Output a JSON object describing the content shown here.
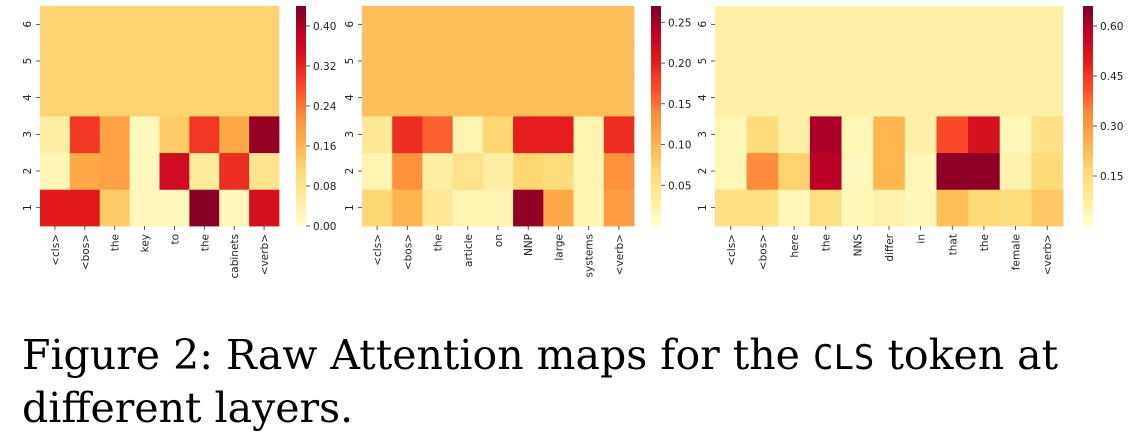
{
  "caption": {
    "prefix": "Figure 2: Raw Attention maps for the",
    "code": "CLS",
    "suffix": "token at different layers."
  },
  "chart_data": [
    {
      "type": "heatmap",
      "x_labels": [
        "<cls>",
        "<bos>",
        "the",
        "key",
        "to",
        "the",
        "cabinets",
        "<verb>"
      ],
      "y_labels": [
        "1",
        "2",
        "3",
        "4",
        "5",
        "6"
      ],
      "values": [
        [
          0.33,
          0.33,
          0.13,
          0.02,
          0.02,
          0.43,
          0.02,
          0.35
        ],
        [
          0.03,
          0.18,
          0.19,
          0.02,
          0.36,
          0.06,
          0.31,
          0.08
        ],
        [
          0.05,
          0.3,
          0.19,
          0.02,
          0.13,
          0.3,
          0.18,
          0.42
        ],
        [
          0.12,
          0.12,
          0.12,
          0.12,
          0.12,
          0.12,
          0.12,
          0.12
        ],
        [
          0.12,
          0.12,
          0.12,
          0.12,
          0.12,
          0.12,
          0.12,
          0.12
        ],
        [
          0.12,
          0.12,
          0.12,
          0.12,
          0.12,
          0.12,
          0.12,
          0.12
        ]
      ],
      "colorbar": {
        "range": [
          0,
          0.44
        ],
        "ticks": [
          "0.00",
          "0.08",
          "0.16",
          "0.24",
          "0.32",
          "0.40"
        ],
        "tick_values": [
          0,
          0.08,
          0.16,
          0.24,
          0.32,
          0.4
        ]
      },
      "colormap": "YlOrRd"
    },
    {
      "type": "heatmap",
      "x_labels": [
        "<cls>",
        "<bos>",
        "the",
        "article",
        "on",
        "NNP",
        "large",
        "systems",
        "<verb>"
      ],
      "y_labels": [
        "1",
        "2",
        "3",
        "4",
        "5",
        "6"
      ],
      "values": [
        [
          0.07,
          0.1,
          0.04,
          0.02,
          0.02,
          0.26,
          0.11,
          0.02,
          0.12
        ],
        [
          0.02,
          0.13,
          0.03,
          0.05,
          0.03,
          0.07,
          0.06,
          0.02,
          0.13
        ],
        [
          0.04,
          0.19,
          0.16,
          0.02,
          0.07,
          0.2,
          0.2,
          0.02,
          0.19
        ],
        [
          0.09,
          0.09,
          0.09,
          0.09,
          0.09,
          0.09,
          0.09,
          0.09,
          0.09
        ],
        [
          0.09,
          0.09,
          0.09,
          0.09,
          0.09,
          0.09,
          0.09,
          0.09,
          0.09
        ],
        [
          0.09,
          0.09,
          0.09,
          0.09,
          0.09,
          0.09,
          0.09,
          0.09,
          0.09
        ]
      ],
      "colorbar": {
        "range": [
          0,
          0.27
        ],
        "ticks": [
          "0.05",
          "0.10",
          "0.15",
          "0.20",
          "0.25"
        ],
        "tick_values": [
          0.05,
          0.1,
          0.15,
          0.2,
          0.25
        ]
      },
      "colormap": "YlOrRd"
    },
    {
      "type": "heatmap",
      "x_labels": [
        "<cls>",
        "<bos>",
        "here",
        "the",
        "NNS",
        "differ",
        "in",
        "that",
        "the",
        "female",
        "<verb>"
      ],
      "y_labels": [
        "1",
        "2",
        "3",
        "4",
        "5",
        "6"
      ],
      "values": [
        [
          0.14,
          0.14,
          0.04,
          0.14,
          0.04,
          0.06,
          0.04,
          0.22,
          0.16,
          0.15,
          0.2
        ],
        [
          0.04,
          0.33,
          0.18,
          0.58,
          0.03,
          0.24,
          0.04,
          0.64,
          0.64,
          0.06,
          0.16
        ],
        [
          0.04,
          0.15,
          0.07,
          0.6,
          0.04,
          0.24,
          0.07,
          0.42,
          0.52,
          0.04,
          0.13
        ],
        [
          0.07,
          0.07,
          0.07,
          0.07,
          0.07,
          0.07,
          0.07,
          0.07,
          0.07,
          0.07,
          0.07
        ],
        [
          0.07,
          0.07,
          0.07,
          0.07,
          0.07,
          0.07,
          0.07,
          0.07,
          0.07,
          0.07,
          0.07
        ],
        [
          0.07,
          0.07,
          0.07,
          0.07,
          0.07,
          0.07,
          0.07,
          0.07,
          0.07,
          0.07,
          0.07
        ]
      ],
      "colorbar": {
        "range": [
          0,
          0.66
        ],
        "ticks": [
          "0.15",
          "0.30",
          "0.45",
          "0.60"
        ],
        "tick_values": [
          0.15,
          0.3,
          0.45,
          0.6
        ]
      },
      "colormap": "YlOrRd"
    }
  ]
}
